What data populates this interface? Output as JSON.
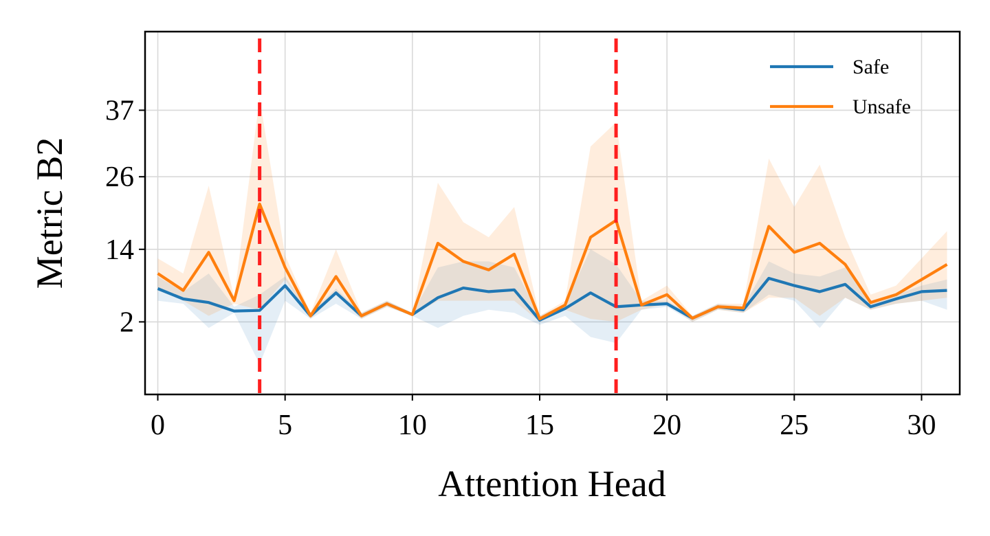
{
  "chart_data": {
    "type": "line",
    "title": "",
    "xlabel": "Attention Head",
    "ylabel": "Metric B2",
    "xlim": [
      -0.5,
      31.5
    ],
    "ylim": [
      -10,
      50
    ],
    "xticks": [
      0,
      5,
      10,
      15,
      20,
      25,
      30
    ],
    "yticks": [
      2,
      14,
      26,
      37
    ],
    "grid": true,
    "legend_position": "top-right",
    "x": [
      0,
      1,
      2,
      3,
      4,
      5,
      6,
      7,
      8,
      9,
      10,
      11,
      12,
      13,
      14,
      15,
      16,
      17,
      18,
      19,
      20,
      21,
      22,
      23,
      24,
      25,
      26,
      27,
      28,
      29,
      30,
      31
    ],
    "series": [
      {
        "name": "Safe",
        "color": "#1f77b4",
        "values": [
          7.5,
          5.8,
          5.2,
          3.8,
          3.9,
          8.0,
          3.0,
          6.8,
          3.0,
          5.0,
          3.2,
          6.0,
          7.6,
          7.0,
          7.3,
          2.3,
          4.2,
          6.8,
          4.5,
          4.8,
          5.0,
          2.6,
          4.5,
          4.0,
          9.2,
          8.0,
          7.0,
          8.2,
          4.5,
          5.8,
          7.0,
          7.2
        ],
        "band_upper": [
          9.5,
          7.0,
          10.0,
          4.5,
          6.5,
          9.5,
          3.5,
          7.5,
          3.5,
          5.5,
          3.5,
          11.0,
          12.0,
          12.0,
          11.0,
          3.0,
          5.0,
          14.0,
          11.5,
          5.5,
          5.5,
          3.0,
          5.0,
          4.5,
          12.0,
          10.0,
          9.5,
          11.0,
          5.5,
          6.5,
          8.0,
          9.0
        ],
        "band_lower": [
          5.5,
          5.0,
          1.0,
          3.5,
          -5.0,
          5.5,
          2.5,
          5.0,
          2.5,
          4.5,
          3.0,
          1.0,
          3.0,
          4.0,
          3.5,
          1.5,
          3.0,
          -0.5,
          -1.5,
          4.0,
          4.5,
          2.0,
          4.0,
          3.5,
          6.5,
          5.5,
          1.0,
          6.0,
          4.0,
          5.0,
          5.5,
          4.0
        ]
      },
      {
        "name": "Unsafe",
        "color": "#ff7f0e",
        "values": [
          10.0,
          7.2,
          13.5,
          5.5,
          21.5,
          11.0,
          3.0,
          9.5,
          3.0,
          5.0,
          3.2,
          15.0,
          12.0,
          10.6,
          13.2,
          2.5,
          4.8,
          16.0,
          18.8,
          4.8,
          6.5,
          2.6,
          4.5,
          4.3,
          17.8,
          13.5,
          15.0,
          11.5,
          5.2,
          6.5,
          9.0,
          11.5
        ],
        "band_upper": [
          12.5,
          10.0,
          24.5,
          6.0,
          39.0,
          13.0,
          3.5,
          14.0,
          3.5,
          5.5,
          3.5,
          25.0,
          18.5,
          16.0,
          21.0,
          3.0,
          5.5,
          31.0,
          35.0,
          5.5,
          8.0,
          3.0,
          5.0,
          5.0,
          29.0,
          21.0,
          28.0,
          16.0,
          6.5,
          8.0,
          12.5,
          17.0
        ],
        "band_lower": [
          7.5,
          5.5,
          3.0,
          5.0,
          4.0,
          9.0,
          2.5,
          6.5,
          2.5,
          4.5,
          3.0,
          5.5,
          5.5,
          5.5,
          5.5,
          2.0,
          4.0,
          2.5,
          2.0,
          4.0,
          5.0,
          2.0,
          4.0,
          3.5,
          6.0,
          6.0,
          3.0,
          6.0,
          4.0,
          5.0,
          5.5,
          6.0
        ]
      }
    ],
    "vlines": {
      "x": [
        4,
        18
      ],
      "color": "#ff1f1f",
      "style": "dashed"
    }
  }
}
